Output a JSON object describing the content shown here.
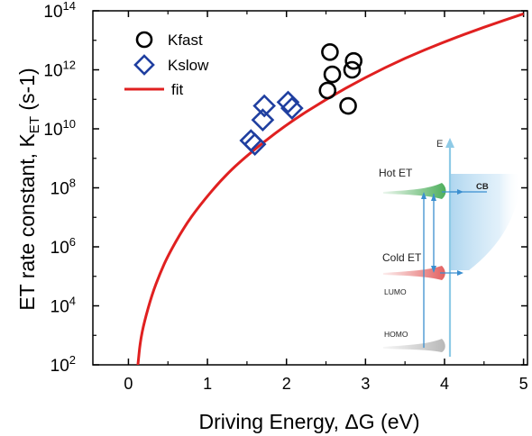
{
  "chart_data": {
    "type": "scatter",
    "title": "",
    "xlabel": "Driving Energy, ΔG (eV)",
    "ylabel": "ET rate constant, K",
    "ylabel_sub": "ET",
    "ylabel_unit": "(s-1)",
    "x_ticks": [
      "0",
      "1",
      "2",
      "3",
      "4",
      "5"
    ],
    "y_tick_exponents": [
      "2",
      "4",
      "6",
      "8",
      "10",
      "12",
      "14"
    ],
    "y_tick_base": "10",
    "xlim": [
      -0.45,
      5.05
    ],
    "ylim_log10": [
      2,
      14
    ],
    "y_scale": "log",
    "legend_position": "top-left",
    "series": [
      {
        "name": "Kfast",
        "marker": "circle",
        "color": "#000000",
        "x": [
          2.55,
          2.58,
          2.52,
          2.85,
          2.83,
          2.78
        ],
        "y": [
          4000000000000.0,
          700000000000.0,
          200000000000.0,
          2000000000000.0,
          1000000000000.0,
          60000000000.0
        ]
      },
      {
        "name": "Kslow",
        "marker": "diamond",
        "color": "#1f3fa0",
        "x": [
          1.55,
          1.6,
          1.7,
          1.72,
          2.02,
          2.07
        ],
        "y": [
          4000000000.0,
          3000000000.0,
          20000000000.0,
          60000000000.0,
          80000000000.0,
          50000000000.0
        ]
      },
      {
        "name": "fit",
        "marker": "line",
        "color": "#e02020",
        "x": [
          0.12,
          0.15,
          0.2,
          0.3,
          0.4,
          0.5,
          0.7,
          0.9,
          1.2,
          1.5,
          2.0,
          2.5,
          3.0,
          3.5,
          4.0,
          4.5,
          5.0
        ],
        "y_log10": [
          2.0,
          2.8,
          3.45,
          4.4,
          5.1,
          5.7,
          6.65,
          7.4,
          8.35,
          9.1,
          10.15,
          11.0,
          11.75,
          12.4,
          12.95,
          13.45,
          13.9
        ]
      }
    ]
  },
  "inset": {
    "axis_label": "E",
    "hot_label": "Hot ET",
    "cold_label": "Cold ET",
    "cb_label": "CB",
    "lumo_label": "LUMO",
    "homo_label": "HOMO",
    "colors": {
      "axis": "#8ecae6",
      "cb": "#4a9fd6",
      "hot": "#3aa64a",
      "cold": "#e05050",
      "homo": "#b0b0b0",
      "arrow": "#3b8fd0"
    }
  }
}
